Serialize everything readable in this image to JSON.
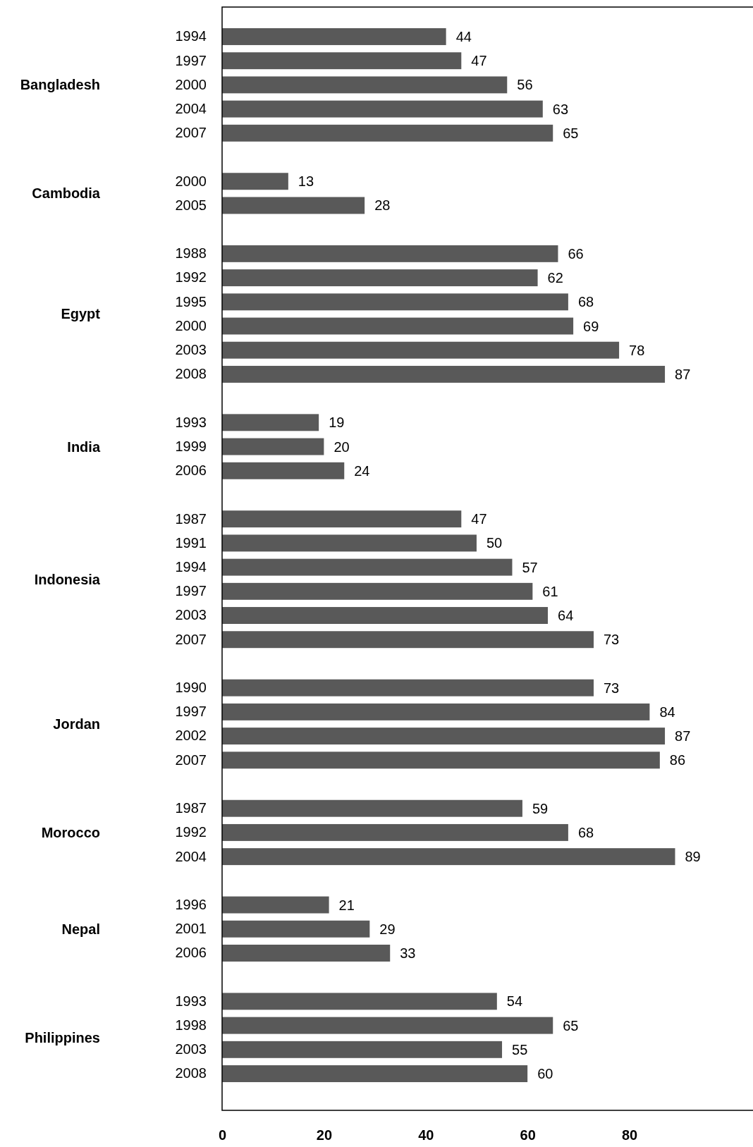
{
  "chart_data": {
    "type": "bar",
    "orientation": "horizontal",
    "categories": [
      "1994",
      "1997",
      "2000",
      "2004",
      "2007",
      null,
      "2000",
      "2005",
      null,
      "1988",
      "1992",
      "1995",
      "2000",
      "2003",
      "2008",
      null,
      "1993",
      "1999",
      "2006",
      null,
      "1987",
      "1991",
      "1994",
      "1997",
      "2003",
      "2007",
      null,
      "1990",
      "1997",
      "2002",
      "2007",
      null,
      "1987",
      "1992",
      "2004",
      null,
      "1996",
      "2001",
      "2006",
      null,
      "1993",
      "1998",
      "2003",
      "2008"
    ],
    "values": [
      44,
      47,
      56,
      63,
      65,
      null,
      13,
      28,
      null,
      66,
      62,
      68,
      69,
      78,
      87,
      null,
      19,
      20,
      24,
      null,
      47,
      50,
      57,
      61,
      64,
      73,
      null,
      73,
      84,
      87,
      86,
      null,
      59,
      68,
      89,
      null,
      21,
      29,
      33,
      null,
      54,
      65,
      55,
      60
    ],
    "color": "#595959",
    "annotations": [
      "Bangladesh",
      "Cambodia",
      "Egypt",
      "India",
      "Indonesia",
      "Jordan",
      "Morocco",
      "Nepal",
      "Philippines"
    ],
    "xlim": [
      0,
      105
    ],
    "xticks": [
      0,
      20,
      40,
      60,
      80
    ],
    "data_labels": true
  }
}
